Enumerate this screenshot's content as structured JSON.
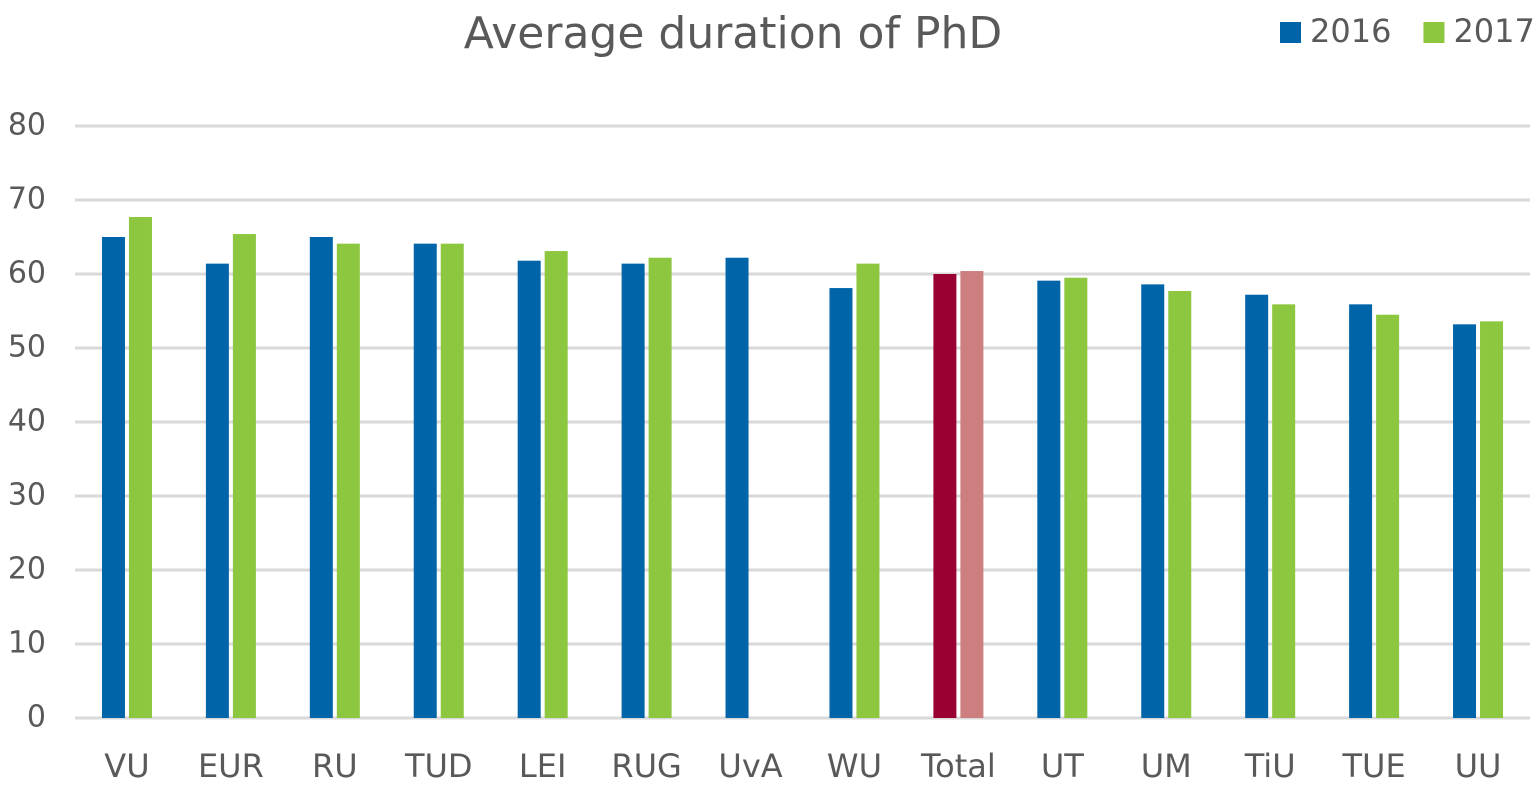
{
  "chart_data": {
    "type": "bar",
    "title": "Average duration of PhD",
    "categories": [
      "VU",
      "EUR",
      "RU",
      "TUD",
      "LEI",
      "RUG",
      "UvA",
      "WU",
      "Total",
      "UT",
      "UM",
      "TiU",
      "TUE",
      "UU"
    ],
    "series": [
      {
        "name": "2016",
        "color": "#0065a8",
        "values": [
          65.0,
          61.4,
          65.0,
          64.1,
          61.8,
          61.4,
          62.2,
          58.1,
          60.0,
          59.1,
          58.6,
          57.2,
          55.9,
          53.2
        ],
        "colors": [
          "#0065a8",
          "#0065a8",
          "#0065a8",
          "#0065a8",
          "#0065a8",
          "#0065a8",
          "#0065a8",
          "#0065a8",
          "#9b0033",
          "#0065a8",
          "#0065a8",
          "#0065a8",
          "#0065a8",
          "#0065a8"
        ]
      },
      {
        "name": "2017",
        "color": "#8dc63f",
        "values": [
          67.7,
          65.4,
          64.1,
          64.1,
          63.1,
          62.2,
          null,
          61.4,
          60.4,
          59.5,
          57.7,
          55.9,
          54.5,
          53.6
        ],
        "colors": [
          "#8dc63f",
          "#8dc63f",
          "#8dc63f",
          "#8dc63f",
          "#8dc63f",
          "#8dc63f",
          "#8dc63f",
          "#8dc63f",
          "#cd7f7f",
          "#8dc63f",
          "#8dc63f",
          "#8dc63f",
          "#8dc63f",
          "#8dc63f"
        ]
      }
    ],
    "ylim": [
      0,
      80
    ],
    "yticks": [
      0,
      10,
      20,
      30,
      40,
      50,
      60,
      70,
      80
    ],
    "grid": true,
    "legend": "top-right"
  }
}
